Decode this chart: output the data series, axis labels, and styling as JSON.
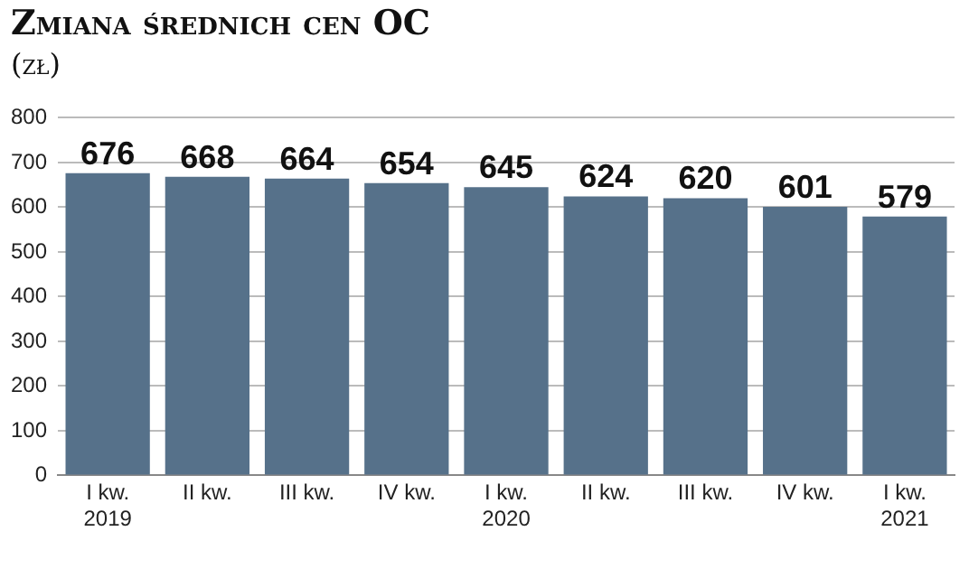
{
  "chart_data": {
    "type": "bar",
    "title": "Zmiana średnich cen OC",
    "subtitle": "(zł)",
    "categories": [
      "I kw.\n2019",
      "II kw.",
      "III kw.",
      "IV kw.",
      "I kw.\n2020",
      "II kw.",
      "III kw.",
      "IV kw.",
      "I kw.\n2021"
    ],
    "values": [
      676,
      668,
      664,
      654,
      645,
      624,
      620,
      601,
      579
    ],
    "color": "#56718a",
    "ylim": [
      0,
      800
    ],
    "yticks": [
      0,
      100,
      200,
      300,
      400,
      500,
      600,
      700,
      800
    ],
    "grid": "y",
    "data_labels": true,
    "legend": false
  }
}
